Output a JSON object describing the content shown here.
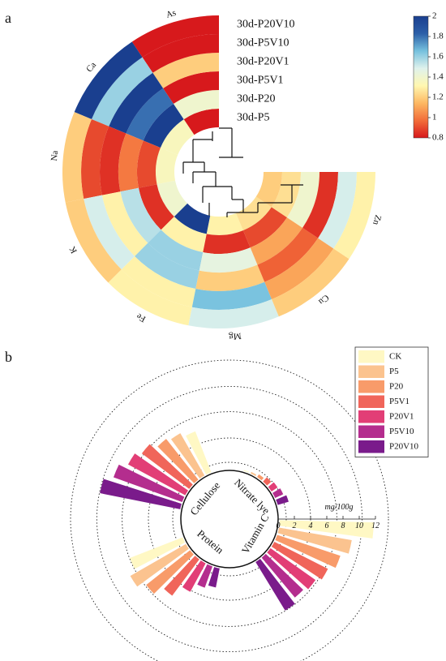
{
  "figure": {
    "panel_a_label": "a",
    "panel_b_label": "b"
  },
  "chart_data": [
    {
      "type": "heatmap",
      "layout": "circular",
      "rows": [
        "30d-P5",
        "30d-P20",
        "30d-P5V1",
        "30d-P20V1",
        "30d-P5V10",
        "30d-P20V10"
      ],
      "columns": [
        "As",
        "Ca",
        "Na",
        "K",
        "Fe",
        "Mg",
        "Cu",
        "Zn"
      ],
      "values": [
        [
          0.8,
          1.4,
          0.8,
          1.2,
          0.8,
          0.8
        ],
        [
          1.35,
          2.0,
          1.8,
          2.0,
          1.6,
          2.0
        ],
        [
          1.35,
          0.9,
          1.0,
          0.85,
          0.9,
          1.2
        ],
        [
          1.4,
          0.85,
          1.55,
          1.3,
          1.5,
          1.2
        ],
        [
          2.0,
          1.3,
          1.6,
          1.6,
          1.3,
          1.3
        ],
        [
          1.3,
          0.85,
          1.45,
          1.2,
          1.65,
          1.5
        ],
        [
          1.25,
          0.9,
          1.1,
          0.95,
          1.1,
          1.2
        ],
        [
          1.2,
          1.25,
          1.4,
          0.85,
          1.5,
          1.3
        ]
      ],
      "colorbar": {
        "min": 0.8,
        "max": 2,
        "ticks": [
          "2",
          "1.8",
          "1.6",
          "1.4",
          "1.2",
          "1",
          "0.8"
        ],
        "colors": [
          "#d7191c",
          "#f26d3a",
          "#fdb863",
          "#fff7b0",
          "#dff2ec",
          "#76c1de",
          "#2c5fa8",
          "#1a3f8f"
        ]
      },
      "dendrogram": true
    },
    {
      "type": "bar",
      "layout": "circular",
      "categories": [
        "Cellulose",
        "Nitrate lye",
        "Vitamin C",
        "Protein"
      ],
      "series": [
        {
          "name": "CK",
          "color": "#fff8c4",
          "values": [
            5.6,
            0.3,
            11.8,
            7.2
          ]
        },
        {
          "name": "P5",
          "color": "#fbc38f",
          "values": [
            6.2,
            0.4,
            9.3,
            8.1
          ]
        },
        {
          "name": "P20",
          "color": "#f89b6a",
          "values": [
            6.6,
            0.6,
            8.4,
            7.1
          ]
        },
        {
          "name": "P5V1",
          "color": "#f0655a",
          "values": [
            7.5,
            0.9,
            7.6,
            5.8
          ]
        },
        {
          "name": "P20V1",
          "color": "#e23e76",
          "values": [
            8.2,
            1.1,
            7.0,
            4.2
          ]
        },
        {
          "name": "P5V10",
          "color": "#b42d8e",
          "values": [
            9.2,
            1.3,
            6.6,
            3.0
          ]
        },
        {
          "name": "P20V10",
          "color": "#7a1b8b",
          "values": [
            10.3,
            1.6,
            7.2,
            2.6
          ]
        }
      ],
      "axis": {
        "ticks": [
          "0",
          "2",
          "4",
          "6",
          "8",
          "10",
          "12"
        ],
        "max": 12,
        "unit": "mg/100g"
      },
      "grid": true,
      "legend_position": "top-right"
    }
  ]
}
